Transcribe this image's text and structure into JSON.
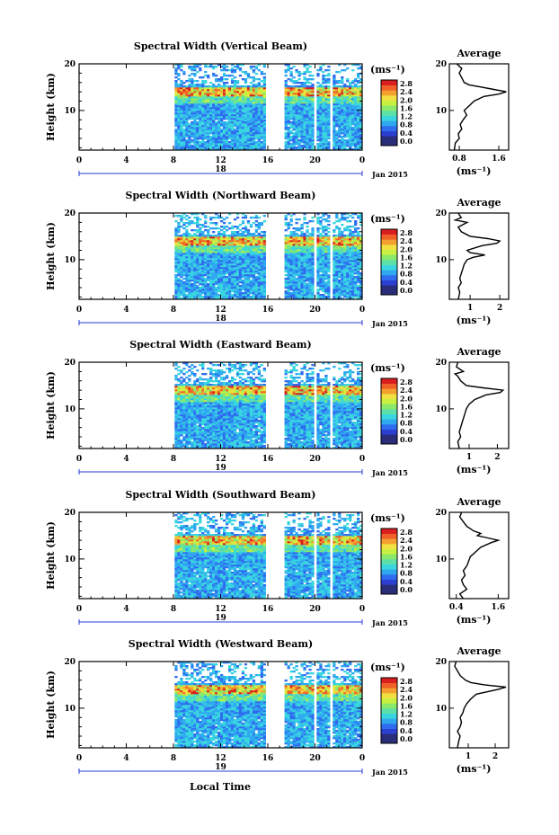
{
  "figure": {
    "date_label": "Jan 2015",
    "xlabel": "Local Time",
    "ylabel": "Height (km)",
    "colorbar_unit": "(ms⁻¹)",
    "average_title": "Average",
    "average_xlabel": "(ms⁻¹)"
  },
  "colors": {
    "colormap": [
      "#2a2e7a",
      "#2b3fd0",
      "#2f6cf0",
      "#2fa8f0",
      "#3ad6e0",
      "#5de0a8",
      "#8ae86a",
      "#c8f040",
      "#f0e040",
      "#f4a030",
      "#f06028",
      "#d81e1e"
    ]
  },
  "chart_data": [
    {
      "type": "heatmap",
      "title": "Spectral Width (Vertical Beam)",
      "x_ticks": [
        "0",
        "4",
        "8",
        "12",
        "16",
        "20",
        "0"
      ],
      "x_range_hours": [
        0,
        24
      ],
      "day_label": "18",
      "y_ticks": [
        "20",
        "10"
      ],
      "ylim_km": [
        1.5,
        20
      ],
      "colorbar_ticks": [
        "2.8",
        "2.4",
        "2.0",
        "1.6",
        "1.2",
        "0.8",
        "0.4",
        "0.0"
      ],
      "color_range": [
        0,
        2.8
      ],
      "data_start_hour": 8.1,
      "data_gaps_hours": [
        [
          15.9,
          17.3
        ],
        [
          19.8,
          20.2
        ],
        [
          21.3,
          21.6
        ]
      ],
      "profile": {
        "xticks": [
          "0.8",
          "1.6"
        ],
        "xlim": [
          0.6,
          1.8
        ],
        "height_km": [
          1.5,
          3,
          4,
          5,
          6,
          7,
          8,
          9,
          10,
          11,
          12,
          13,
          13.5,
          14,
          14.5,
          15,
          15.5,
          16,
          17,
          18,
          19,
          20
        ],
        "value": [
          0.7,
          0.72,
          0.8,
          0.78,
          0.85,
          0.82,
          0.88,
          0.95,
          0.9,
          1.0,
          1.1,
          1.3,
          1.6,
          1.75,
          1.5,
          1.25,
          1.0,
          0.9,
          0.85,
          0.8,
          0.85,
          0.75
        ]
      }
    },
    {
      "type": "heatmap",
      "title": "Spectral Width (Northward Beam)",
      "x_ticks": [
        "0",
        "4",
        "8",
        "12",
        "16",
        "20",
        "0"
      ],
      "x_range_hours": [
        0,
        24
      ],
      "day_label": "18",
      "y_ticks": [
        "20",
        "10"
      ],
      "ylim_km": [
        1.5,
        20
      ],
      "colorbar_ticks": [
        "2.8",
        "2.4",
        "2.0",
        "1.6",
        "1.2",
        "0.8",
        "0.4",
        "0.0"
      ],
      "color_range": [
        0,
        2.8
      ],
      "data_start_hour": 8.1,
      "data_gaps_hours": [
        [
          15.9,
          17.3
        ],
        [
          19.8,
          20.2
        ],
        [
          21.3,
          21.6
        ]
      ],
      "profile": {
        "xticks": [
          "1",
          "2"
        ],
        "xlim": [
          0.3,
          2.3
        ],
        "height_km": [
          1.5,
          3,
          4,
          5,
          6,
          7,
          8,
          9,
          10,
          10.5,
          11,
          11.5,
          12,
          13,
          13.5,
          14,
          14.5,
          15,
          16,
          17,
          18,
          18.5,
          19,
          20
        ],
        "value": [
          0.6,
          0.65,
          0.6,
          0.7,
          0.65,
          0.7,
          0.75,
          0.8,
          0.9,
          1.1,
          1.5,
          1.0,
          0.9,
          1.4,
          1.9,
          2.0,
          1.6,
          1.0,
          0.7,
          0.6,
          0.9,
          0.5,
          0.7,
          0.6
        ]
      }
    },
    {
      "type": "heatmap",
      "title": "Spectral Width (Eastward Beam)",
      "x_ticks": [
        "0",
        "4",
        "8",
        "12",
        "16",
        "20",
        "0"
      ],
      "x_range_hours": [
        0,
        24
      ],
      "day_label": "19",
      "y_ticks": [
        "20",
        "10"
      ],
      "ylim_km": [
        1.5,
        20
      ],
      "colorbar_ticks": [
        "2.8",
        "2.4",
        "2.0",
        "1.6",
        "1.2",
        "0.8",
        "0.4",
        "0.0"
      ],
      "color_range": [
        0,
        2.8
      ],
      "data_start_hour": 8.1,
      "data_gaps_hours": [
        [
          15.9,
          17.3
        ],
        [
          19.8,
          20.2
        ],
        [
          21.3,
          21.6
        ]
      ],
      "profile": {
        "xticks": [
          "1",
          "2"
        ],
        "xlim": [
          0.3,
          2.4
        ],
        "height_km": [
          1.5,
          3,
          4,
          5,
          6,
          7,
          8,
          9,
          10,
          11,
          12,
          13,
          13.5,
          14,
          14.5,
          15,
          16,
          17,
          17.5,
          18,
          19,
          20
        ],
        "value": [
          0.65,
          0.6,
          0.7,
          0.65,
          0.7,
          0.75,
          0.8,
          0.85,
          0.9,
          1.0,
          1.2,
          1.6,
          2.1,
          2.2,
          1.5,
          0.9,
          0.7,
          0.6,
          0.5,
          0.8,
          0.55,
          0.6
        ]
      }
    },
    {
      "type": "heatmap",
      "title": "Spectral Width (Southward Beam)",
      "x_ticks": [
        "0",
        "4",
        "8",
        "12",
        "16",
        "20",
        "0"
      ],
      "x_range_hours": [
        0,
        24
      ],
      "day_label": "19",
      "y_ticks": [
        "20",
        "10"
      ],
      "ylim_km": [
        1.5,
        20
      ],
      "colorbar_ticks": [
        "2.8",
        "2.4",
        "2.0",
        "1.6",
        "1.2",
        "0.8",
        "0.4",
        "0.0"
      ],
      "color_range": [
        0,
        2.8
      ],
      "data_start_hour": 8.1,
      "data_gaps_hours": [
        [
          15.9,
          17.3
        ],
        [
          19.8,
          20.2
        ],
        [
          21.3,
          21.6
        ]
      ],
      "profile": {
        "xticks": [
          "0.4",
          "1.6"
        ],
        "xlim": [
          0.2,
          1.9
        ],
        "height_km": [
          1.5,
          2.5,
          3.5,
          4.5,
          5.5,
          6.5,
          7.5,
          8.5,
          9.5,
          10.5,
          11.5,
          12.5,
          13.5,
          14,
          14.5,
          15,
          15.5,
          16,
          17,
          18,
          19,
          20
        ],
        "value": [
          0.6,
          0.5,
          0.7,
          0.6,
          0.55,
          0.65,
          0.6,
          0.7,
          0.75,
          0.8,
          0.95,
          1.1,
          1.4,
          1.6,
          1.3,
          1.0,
          1.1,
          0.9,
          0.7,
          0.6,
          0.5,
          0.55
        ]
      }
    },
    {
      "type": "heatmap",
      "title": "Spectral Width (Westward Beam)",
      "x_ticks": [
        "0",
        "4",
        "8",
        "12",
        "16",
        "20",
        "0"
      ],
      "x_range_hours": [
        0,
        24
      ],
      "day_label": "19",
      "y_ticks": [
        "20",
        "10"
      ],
      "ylim_km": [
        1.5,
        20
      ],
      "colorbar_ticks": [
        "2.8",
        "2.4",
        "2.0",
        "1.6",
        "1.2",
        "0.8",
        "0.4",
        "0.0"
      ],
      "color_range": [
        0,
        2.8
      ],
      "data_start_hour": 8.1,
      "data_gaps_hours": [
        [
          15.9,
          17.3
        ],
        [
          19.8,
          20.2
        ],
        [
          21.3,
          21.6
        ]
      ],
      "profile": {
        "xticks": [
          "1",
          "2"
        ],
        "xlim": [
          0.3,
          2.5
        ],
        "height_km": [
          1.5,
          3,
          4,
          5,
          6,
          7,
          8,
          9,
          10,
          11,
          12,
          13,
          14,
          14.5,
          15,
          15.5,
          16,
          17,
          18,
          19,
          20
        ],
        "value": [
          0.6,
          0.65,
          0.7,
          0.6,
          0.7,
          0.75,
          0.7,
          0.8,
          0.85,
          0.95,
          1.1,
          1.3,
          2.1,
          2.4,
          1.6,
          1.1,
          0.9,
          0.7,
          0.6,
          0.5,
          0.55
        ]
      }
    }
  ]
}
